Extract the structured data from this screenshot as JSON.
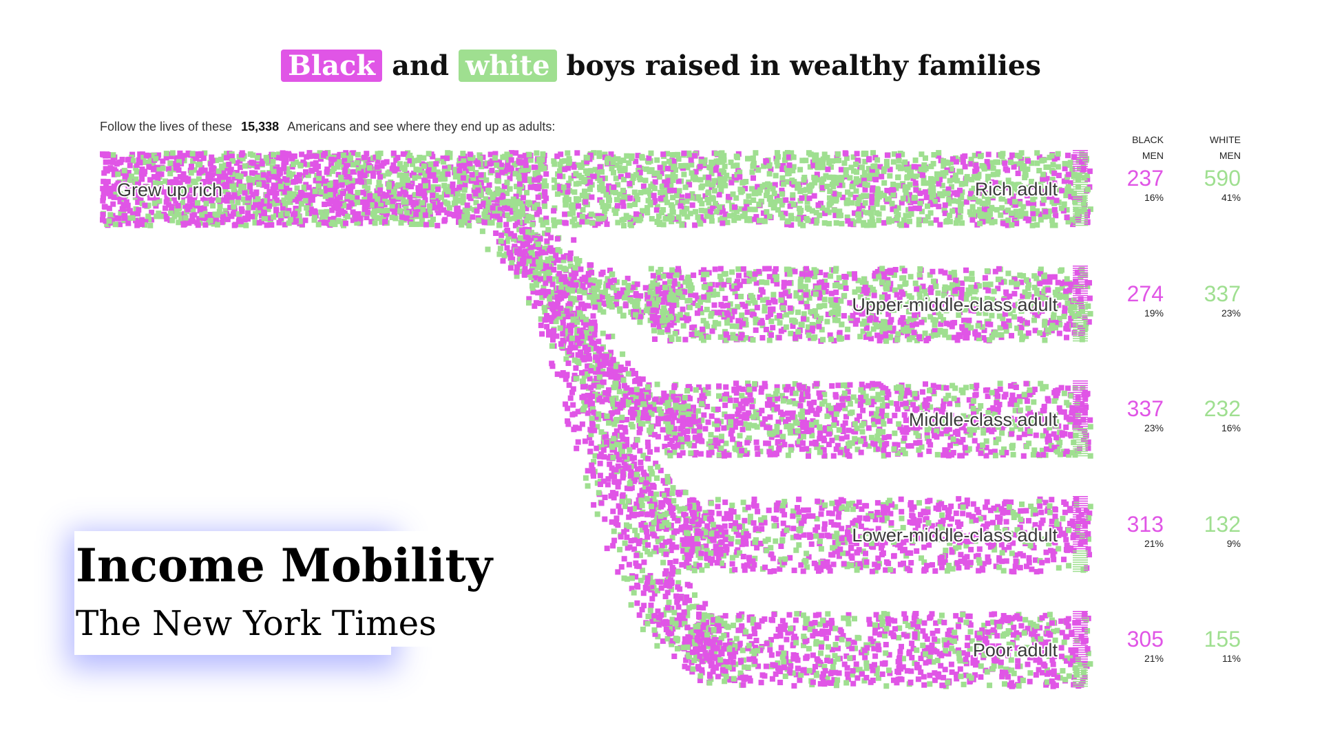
{
  "headline": {
    "chip_black": "Black",
    "middle": "and",
    "chip_white": "white",
    "rest": "boys raised in wealthy families"
  },
  "intro": {
    "before": "Follow the lives of these",
    "count": "15,338",
    "after": "Americans and see where they end up as adults:"
  },
  "columns": {
    "black": [
      "BLACK",
      "MEN"
    ],
    "white": [
      "WHITE",
      "MEN"
    ]
  },
  "colors": {
    "black": "#e055e6",
    "white": "#9fdf90"
  },
  "chart_data": {
    "type": "flow",
    "source_label": "Grew up rich",
    "series": [
      {
        "name": "Black men",
        "color": "#e055e6"
      },
      {
        "name": "White men",
        "color": "#9fdf90"
      }
    ],
    "outcomes": [
      {
        "label": "Rich adult",
        "black": {
          "count": "237",
          "pct": "16%"
        },
        "white": {
          "count": "590",
          "pct": "41%"
        }
      },
      {
        "label": "Upper-middle-class adult",
        "black": {
          "count": "274",
          "pct": "19%"
        },
        "white": {
          "count": "337",
          "pct": "23%"
        }
      },
      {
        "label": "Middle-class adult",
        "black": {
          "count": "337",
          "pct": "23%"
        },
        "white": {
          "count": "232",
          "pct": "16%"
        }
      },
      {
        "label": "Lower-middle-class adult",
        "black": {
          "count": "313",
          "pct": "21%"
        },
        "white": {
          "count": "132",
          "pct": "9%"
        }
      },
      {
        "label": "Poor adult",
        "black": {
          "count": "305",
          "pct": "21%"
        },
        "white": {
          "count": "155",
          "pct": "11%"
        }
      }
    ]
  },
  "branding": {
    "title": "Income Mobility",
    "subtitle": "The New York Times"
  }
}
